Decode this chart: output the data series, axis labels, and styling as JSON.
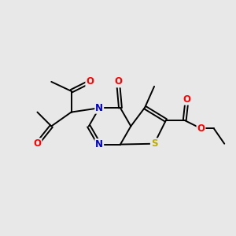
{
  "background_color": "#e8e8e8",
  "bond_color": "#000000",
  "atom_colors": {
    "O": "#ff0000",
    "N": "#0000cc",
    "S": "#bbaa00",
    "C": "#000000"
  },
  "figsize": [
    3.0,
    3.0
  ],
  "dpi": 100
}
